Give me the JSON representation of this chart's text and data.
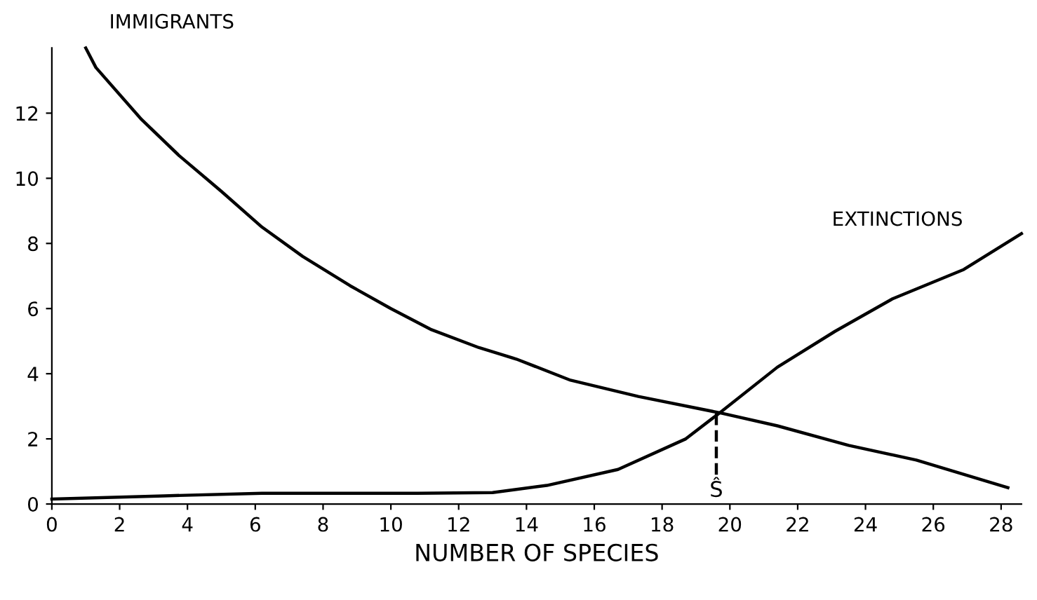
{
  "chart_data": {
    "type": "line",
    "xlabel": "NUMBER OF SPECIES",
    "xlim": [
      0,
      28.6
    ],
    "ylim": [
      0,
      14
    ],
    "xticks": [
      0,
      2,
      4,
      6,
      8,
      10,
      12,
      14,
      16,
      18,
      20,
      22,
      24,
      26,
      28
    ],
    "yticks": [
      0,
      2,
      4,
      6,
      8,
      10,
      12
    ],
    "grid": false,
    "legend": false,
    "marker": "none",
    "line_style": "solid",
    "series": [
      {
        "name": "IMMIGRANTS",
        "color": "#000000",
        "x": [
          1,
          1.3,
          2.65,
          3.75,
          5.0,
          6.2,
          7.4,
          8.8,
          10,
          11.2,
          12.6,
          13.7,
          15.3,
          17.3,
          19.7,
          21.4,
          23.5,
          25.5,
          28.2
        ],
        "values": [
          14,
          13.4,
          11.8,
          10.7,
          9.6,
          8.5,
          7.6,
          6.7,
          6.0,
          5.35,
          4.8,
          4.45,
          3.8,
          3.3,
          2.8,
          2.4,
          1.8,
          1.35,
          0.5
        ]
      },
      {
        "name": "EXTINCTIONS",
        "color": "#000000",
        "x": [
          0,
          3.3,
          6.2,
          10.8,
          13.0,
          14.6,
          16.7,
          18.7,
          19.7,
          21.4,
          23.1,
          24.8,
          26.9,
          28.6
        ],
        "values": [
          0.15,
          0.25,
          0.33,
          0.33,
          0.35,
          0.57,
          1.06,
          2.0,
          2.8,
          4.2,
          5.3,
          6.3,
          7.2,
          8.3
        ]
      },
      {
        "color": "#000000",
        "line_style": "dashed",
        "x": [
          19.6,
          19.6
        ],
        "values": [
          0.9,
          2.8
        ]
      }
    ],
    "annotations": [
      "Ŝ"
    ]
  }
}
